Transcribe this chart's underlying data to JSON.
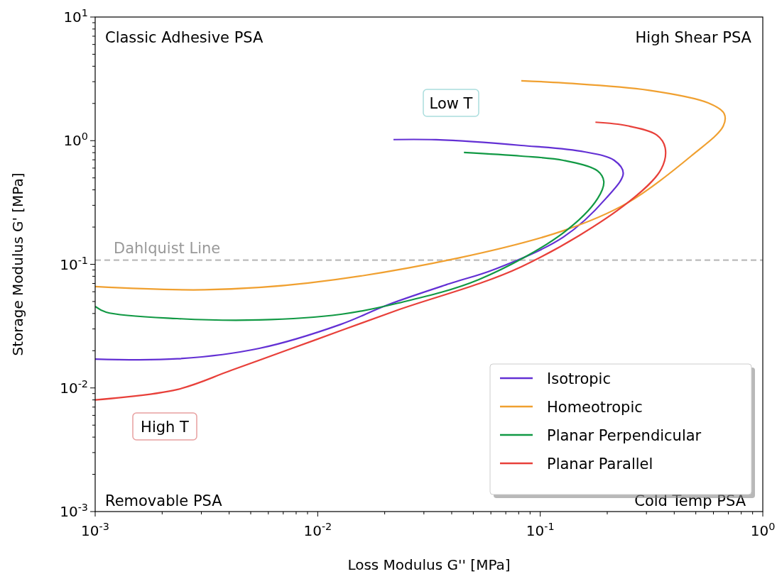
{
  "chart_data": {
    "type": "line",
    "xlabel": "Loss Modulus G'' [MPa]",
    "ylabel": "Storage Modulus G' [MPa]",
    "log": "xy",
    "grid": false,
    "legend": "bottom right",
    "line_style": "solid",
    "marker": "none",
    "xlim": [
      0.001,
      1
    ],
    "ylim": [
      0.001,
      10
    ],
    "xticks": [
      {
        "value": 0.001,
        "label": "10$^{-3}$"
      },
      {
        "value": 0.002,
        "label": null
      },
      {
        "value": 0.003,
        "label": null
      },
      {
        "value": 0.004,
        "label": null
      },
      {
        "value": 0.005,
        "label": null
      },
      {
        "value": 0.006,
        "label": null
      },
      {
        "value": 0.007,
        "label": null
      },
      {
        "value": 0.008,
        "label": null
      },
      {
        "value": 0.009,
        "label": null
      },
      {
        "value": 0.01,
        "label": "10$^{-2}$"
      },
      {
        "value": 0.02,
        "label": null
      },
      {
        "value": 0.03,
        "label": null
      },
      {
        "value": 0.04,
        "label": null
      },
      {
        "value": 0.05,
        "label": null
      },
      {
        "value": 0.06,
        "label": null
      },
      {
        "value": 0.07,
        "label": null
      },
      {
        "value": 0.08,
        "label": null
      },
      {
        "value": 0.09,
        "label": null
      },
      {
        "value": 0.1,
        "label": "10$^{-1}$"
      },
      {
        "value": 0.2,
        "label": null
      },
      {
        "value": 0.3,
        "label": null
      },
      {
        "value": 0.4,
        "label": null
      },
      {
        "value": 0.5,
        "label": null
      },
      {
        "value": 0.6,
        "label": null
      },
      {
        "value": 0.7,
        "label": null
      },
      {
        "value": 0.8,
        "label": null
      },
      {
        "value": 0.9,
        "label": null
      },
      {
        "value": 1,
        "label": "10$^{0}$"
      }
    ],
    "yticks": [
      {
        "value": 0.001,
        "label": "10$^{-3}$"
      },
      {
        "value": 0.002,
        "label": null
      },
      {
        "value": 0.003,
        "label": null
      },
      {
        "value": 0.004,
        "label": null
      },
      {
        "value": 0.005,
        "label": null
      },
      {
        "value": 0.006,
        "label": null
      },
      {
        "value": 0.007,
        "label": null
      },
      {
        "value": 0.008,
        "label": null
      },
      {
        "value": 0.009,
        "label": null
      },
      {
        "value": 0.01,
        "label": "10$^{-2}$"
      },
      {
        "value": 0.02,
        "label": null
      },
      {
        "value": 0.03,
        "label": null
      },
      {
        "value": 0.04,
        "label": null
      },
      {
        "value": 0.05,
        "label": null
      },
      {
        "value": 0.06,
        "label": null
      },
      {
        "value": 0.07,
        "label": null
      },
      {
        "value": 0.08,
        "label": null
      },
      {
        "value": 0.09,
        "label": null
      },
      {
        "value": 0.1,
        "label": "10$^{-1}$"
      },
      {
        "value": 0.2,
        "label": null
      },
      {
        "value": 0.3,
        "label": null
      },
      {
        "value": 0.4,
        "label": null
      },
      {
        "value": 0.5,
        "label": null
      },
      {
        "value": 0.6,
        "label": null
      },
      {
        "value": 0.7,
        "label": null
      },
      {
        "value": 0.8,
        "label": null
      },
      {
        "value": 0.9,
        "label": null
      },
      {
        "value": 1,
        "label": "10$^{0}$"
      },
      {
        "value": 2,
        "label": null
      },
      {
        "value": 3,
        "label": null
      },
      {
        "value": 4,
        "label": null
      },
      {
        "value": 5,
        "label": null
      },
      {
        "value": 6,
        "label": null
      },
      {
        "value": 7,
        "label": null
      },
      {
        "value": 8,
        "label": null
      },
      {
        "value": 9,
        "label": null
      },
      {
        "value": 10,
        "label": "10$^{1}$"
      }
    ],
    "series": [
      {
        "name": "Isotropic",
        "color": "#6330d4",
        "x": [
          0.001,
          0.00234,
          0.00546,
          0.0127,
          0.0205,
          0.0389,
          0.0618,
          0.127,
          0.197,
          0.236,
          0.215,
          0.158,
          0.0822,
          0.034,
          0.0219
        ],
        "values": [
          0.0171,
          0.0172,
          0.0209,
          0.0327,
          0.0468,
          0.0695,
          0.0906,
          0.166,
          0.34,
          0.546,
          0.693,
          0.812,
          0.915,
          1.017,
          1.02
        ]
      },
      {
        "name": "Homeotropic",
        "color": "#f0a030",
        "x": [
          0.001,
          0.0031,
          0.00907,
          0.0425,
          0.127,
          0.246,
          0.476,
          0.664,
          0.67,
          0.568,
          0.306,
          0.127,
          0.0822
        ],
        "values": [
          0.066,
          0.0622,
          0.0705,
          0.112,
          0.187,
          0.313,
          0.75,
          1.31,
          1.66,
          2.02,
          2.56,
          2.93,
          3.05
        ]
      },
      {
        "name": "Planar Perpendicular",
        "color": "#119944",
        "x": [
          0.001,
          0.00112,
          0.00233,
          0.00546,
          0.0127,
          0.0224,
          0.053,
          0.127,
          0.181,
          0.193,
          0.181,
          0.127,
          0.0822,
          0.0454
        ],
        "values": [
          0.0456,
          0.041,
          0.0364,
          0.0355,
          0.0394,
          0.048,
          0.0753,
          0.18,
          0.34,
          0.467,
          0.569,
          0.693,
          0.75,
          0.802
        ]
      },
      {
        "name": "Planar Parallel",
        "color": "#e8403a",
        "x": [
          0.001,
          0.00233,
          0.0041,
          0.0096,
          0.0224,
          0.0822,
          0.246,
          0.35,
          0.364,
          0.334,
          0.246,
          0.177
        ],
        "values": [
          0.008,
          0.0097,
          0.0139,
          0.0242,
          0.0421,
          0.0955,
          0.313,
          0.592,
          0.879,
          1.11,
          1.32,
          1.41
        ]
      }
    ],
    "ref_lines": [
      {
        "axis": "y",
        "value": 0.108,
        "label": "Dahlquist Line",
        "color": "#bbbbbb",
        "line_style": "dashed"
      }
    ],
    "annotations": [
      "Classic Adhesive PSA",
      "High Shear PSA",
      "Removable PSA",
      "Cold Temp PSA",
      "Low T",
      "High T"
    ]
  }
}
